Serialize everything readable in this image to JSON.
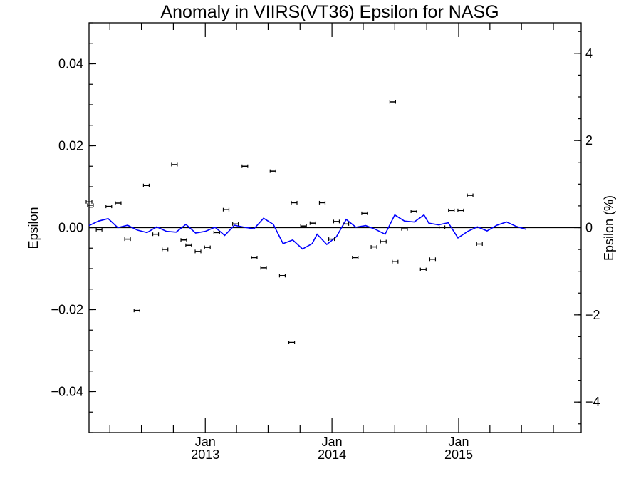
{
  "chart_data": {
    "type": "scatter",
    "title": "Anomaly in VIIRS(VT36) Epsilon for NASG",
    "ylabel": "Epsilon",
    "ylabel_right": "Epsilon (%)",
    "xlabel": "",
    "ylim": [
      -0.05,
      0.05
    ],
    "ylim_right": [
      -4.7,
      4.7
    ],
    "xlim": [
      "2012-02-01",
      "2015-12-20"
    ],
    "y_ticks": [
      -0.04,
      -0.02,
      0.0,
      0.02,
      0.04
    ],
    "y_tick_labels": [
      "−0.04",
      "−0.02",
      "0.00",
      "0.02",
      "0.04"
    ],
    "y_right_ticks": [
      -4,
      -2,
      0,
      2,
      4
    ],
    "y_right_tick_labels": [
      "−4",
      "−2",
      "0",
      "2",
      "4"
    ],
    "x_ticks": [
      {
        "date": "2013-01-01",
        "month": "Jan",
        "year": "2013"
      },
      {
        "date": "2014-01-01",
        "month": "Jan",
        "year": "2014"
      },
      {
        "date": "2015-01-01",
        "month": "Jan",
        "year": "2015"
      }
    ],
    "reference_line": 0,
    "grid": false,
    "series": [
      {
        "marker": "point-with-errorbar",
        "color": "#000000",
        "points": [
          {
            "x": "2012-02-01",
            "y": 0.0063
          },
          {
            "x": "2012-02-05",
            "y": 0.0055
          },
          {
            "x": "2012-03-01",
            "y": -0.0005
          },
          {
            "x": "2012-03-29",
            "y": 0.0052
          },
          {
            "x": "2012-04-25",
            "y": 0.006
          },
          {
            "x": "2012-05-22",
            "y": -0.0028
          },
          {
            "x": "2012-06-18",
            "y": -0.0202
          },
          {
            "x": "2012-07-15",
            "y": 0.0103
          },
          {
            "x": "2012-08-11",
            "y": -0.0016
          },
          {
            "x": "2012-09-07",
            "y": -0.0053
          },
          {
            "x": "2012-10-04",
            "y": 0.0154
          },
          {
            "x": "2012-10-31",
            "y": -0.003
          },
          {
            "x": "2012-11-14",
            "y": -0.0043
          },
          {
            "x": "2012-12-11",
            "y": -0.0058
          },
          {
            "x": "2013-01-07",
            "y": -0.0048
          },
          {
            "x": "2013-02-03",
            "y": -0.0012
          },
          {
            "x": "2013-03-02",
            "y": 0.0044
          },
          {
            "x": "2013-03-29",
            "y": 0.0009
          },
          {
            "x": "2013-04-25",
            "y": 0.015
          },
          {
            "x": "2013-05-22",
            "y": -0.0073
          },
          {
            "x": "2013-06-18",
            "y": -0.0098
          },
          {
            "x": "2013-07-15",
            "y": 0.0138
          },
          {
            "x": "2013-08-11",
            "y": -0.0117
          },
          {
            "x": "2013-09-07",
            "y": -0.028
          },
          {
            "x": "2013-09-14",
            "y": 0.0061
          },
          {
            "x": "2013-10-11",
            "y": 0.0004
          },
          {
            "x": "2013-11-07",
            "y": 0.0011
          },
          {
            "x": "2013-12-04",
            "y": 0.0061
          },
          {
            "x": "2013-12-31",
            "y": -0.0028
          },
          {
            "x": "2014-01-14",
            "y": 0.0015
          },
          {
            "x": "2014-02-10",
            "y": 0.0009
          },
          {
            "x": "2014-03-09",
            "y": -0.0073
          },
          {
            "x": "2014-04-05",
            "y": 0.0035
          },
          {
            "x": "2014-05-02",
            "y": -0.0047
          },
          {
            "x": "2014-05-29",
            "y": -0.0034
          },
          {
            "x": "2014-06-25",
            "y": 0.0307
          },
          {
            "x": "2014-07-02",
            "y": -0.0083
          },
          {
            "x": "2014-07-29",
            "y": -0.0003
          },
          {
            "x": "2014-08-25",
            "y": 0.004
          },
          {
            "x": "2014-09-21",
            "y": -0.0102
          },
          {
            "x": "2014-10-18",
            "y": -0.0077
          },
          {
            "x": "2014-11-14",
            "y": 0.0001
          },
          {
            "x": "2014-12-11",
            "y": 0.0042
          },
          {
            "x": "2015-01-07",
            "y": 0.0042
          },
          {
            "x": "2015-02-03",
            "y": 0.0079
          },
          {
            "x": "2015-03-02",
            "y": -0.004
          }
        ]
      },
      {
        "marker": "line",
        "color": "#0000ff",
        "points": [
          {
            "x": "2012-02-01",
            "y": 0.0005
          },
          {
            "x": "2012-02-28",
            "y": 0.0016
          },
          {
            "x": "2012-03-27",
            "y": 0.0022
          },
          {
            "x": "2012-04-24",
            "y": 0.0
          },
          {
            "x": "2012-05-22",
            "y": 0.0006
          },
          {
            "x": "2012-06-19",
            "y": -0.0006
          },
          {
            "x": "2012-07-17",
            "y": -0.0012
          },
          {
            "x": "2012-08-14",
            "y": 0.0002
          },
          {
            "x": "2012-09-11",
            "y": -0.0009
          },
          {
            "x": "2012-10-09",
            "y": -0.0011
          },
          {
            "x": "2012-11-06",
            "y": 0.0008
          },
          {
            "x": "2012-12-04",
            "y": -0.0013
          },
          {
            "x": "2013-01-01",
            "y": -0.0009
          },
          {
            "x": "2013-01-29",
            "y": 0.0001
          },
          {
            "x": "2013-02-26",
            "y": -0.0019
          },
          {
            "x": "2013-03-26",
            "y": 0.0006
          },
          {
            "x": "2013-04-23",
            "y": 0.0001
          },
          {
            "x": "2013-05-21",
            "y": -0.0003
          },
          {
            "x": "2013-06-18",
            "y": 0.0023
          },
          {
            "x": "2013-07-16",
            "y": 0.0008
          },
          {
            "x": "2013-08-13",
            "y": -0.0039
          },
          {
            "x": "2013-09-10",
            "y": -0.003
          },
          {
            "x": "2013-10-08",
            "y": -0.0052
          },
          {
            "x": "2013-11-05",
            "y": -0.0039
          },
          {
            "x": "2013-11-19",
            "y": -0.0016
          },
          {
            "x": "2013-12-17",
            "y": -0.0041
          },
          {
            "x": "2014-01-14",
            "y": -0.0022
          },
          {
            "x": "2014-02-11",
            "y": 0.002
          },
          {
            "x": "2014-03-11",
            "y": 0.0001
          },
          {
            "x": "2014-04-08",
            "y": 0.0005
          },
          {
            "x": "2014-05-06",
            "y": -0.0004
          },
          {
            "x": "2014-06-03",
            "y": -0.0016
          },
          {
            "x": "2014-07-01",
            "y": 0.0031
          },
          {
            "x": "2014-07-29",
            "y": 0.0016
          },
          {
            "x": "2014-08-26",
            "y": 0.0014
          },
          {
            "x": "2014-09-23",
            "y": 0.0031
          },
          {
            "x": "2014-10-07",
            "y": 0.0011
          },
          {
            "x": "2014-11-04",
            "y": 0.0007
          },
          {
            "x": "2014-12-02",
            "y": 0.0012
          },
          {
            "x": "2014-12-30",
            "y": -0.0025
          },
          {
            "x": "2015-01-27",
            "y": -0.0009
          },
          {
            "x": "2015-02-24",
            "y": 0.0002
          },
          {
            "x": "2015-03-24",
            "y": -0.0008
          },
          {
            "x": "2015-04-21",
            "y": 0.0006
          },
          {
            "x": "2015-05-19",
            "y": 0.0014
          },
          {
            "x": "2015-06-16",
            "y": 0.0003
          },
          {
            "x": "2015-07-14",
            "y": -0.0004
          }
        ]
      }
    ]
  }
}
